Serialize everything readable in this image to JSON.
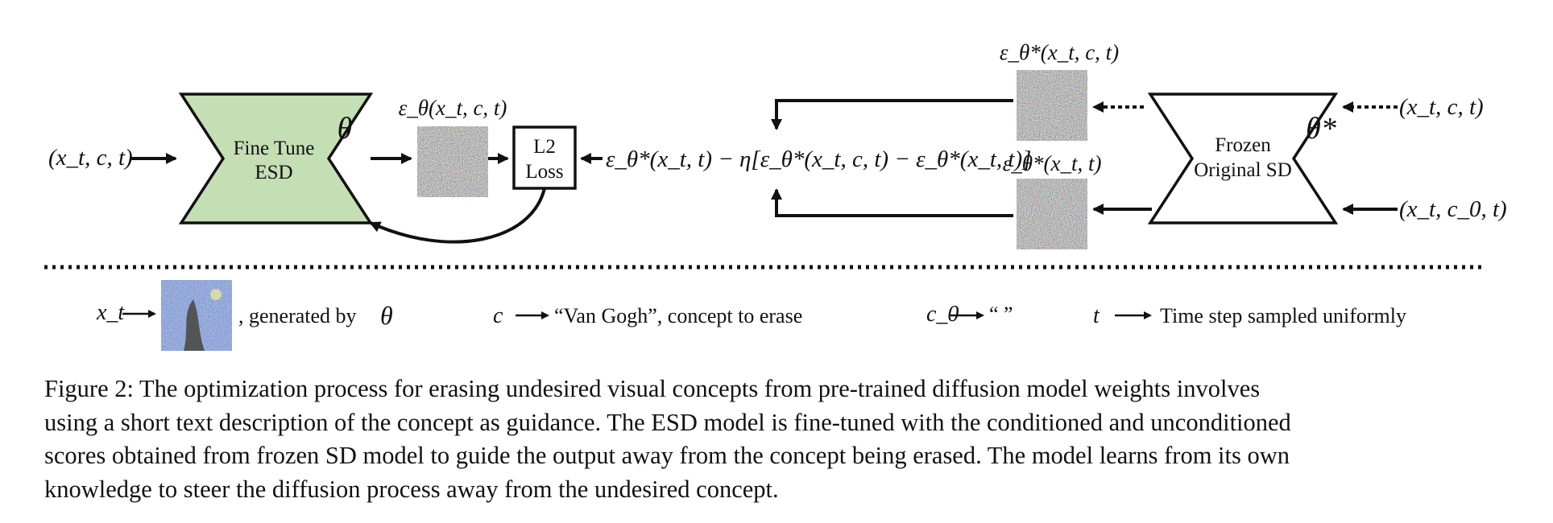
{
  "figure": {
    "blocks": {
      "finetune": {
        "line1": "Fine Tune",
        "line2": "ESD",
        "param": "θ",
        "fill": "#c5dfb4"
      },
      "frozen": {
        "line1": "Frozen",
        "line2": "Original SD",
        "param": "θ*"
      },
      "loss": {
        "line1": "L2",
        "line2": "Loss"
      }
    },
    "inputs": {
      "left": "(x_t, c, t)",
      "right_top": "(x_t, c, t)",
      "right_bottom": "(x_t, c_0, t)"
    },
    "noise_labels": {
      "finetune_out": "ε_θ(x_t, c, t)",
      "frozen_cond": "ε_θ*(x_t, c, t)",
      "frozen_uncond": "ε_θ*(x_t, t)"
    },
    "target_expression": "ε_θ*(x_t, t) − η[ε_θ*(x_t, c, t) − ε_θ*(x_t, t)]",
    "legend": {
      "xt": {
        "symbol": "x_t",
        "text": ", generated by",
        "param": "θ"
      },
      "c": {
        "symbol": "c",
        "text": "“Van Gogh”, concept to erase"
      },
      "c0": {
        "symbol": "c_0",
        "text": "“ ”"
      },
      "t": {
        "symbol": "t",
        "text": "Time step sampled uniformly"
      }
    }
  },
  "caption": {
    "line1": "Figure 2: The optimization process for erasing undesired visual concepts from pre-trained diffusion model weights involves",
    "line2": "using a short text description of the concept as guidance. The ESD model is fine-tuned with the conditioned and unconditioned",
    "line3": "scores obtained from frozen SD model to guide the output away from the concept being erased. The model learns from its own",
    "line4": "knowledge to steer the diffusion process away from the undesired concept."
  }
}
